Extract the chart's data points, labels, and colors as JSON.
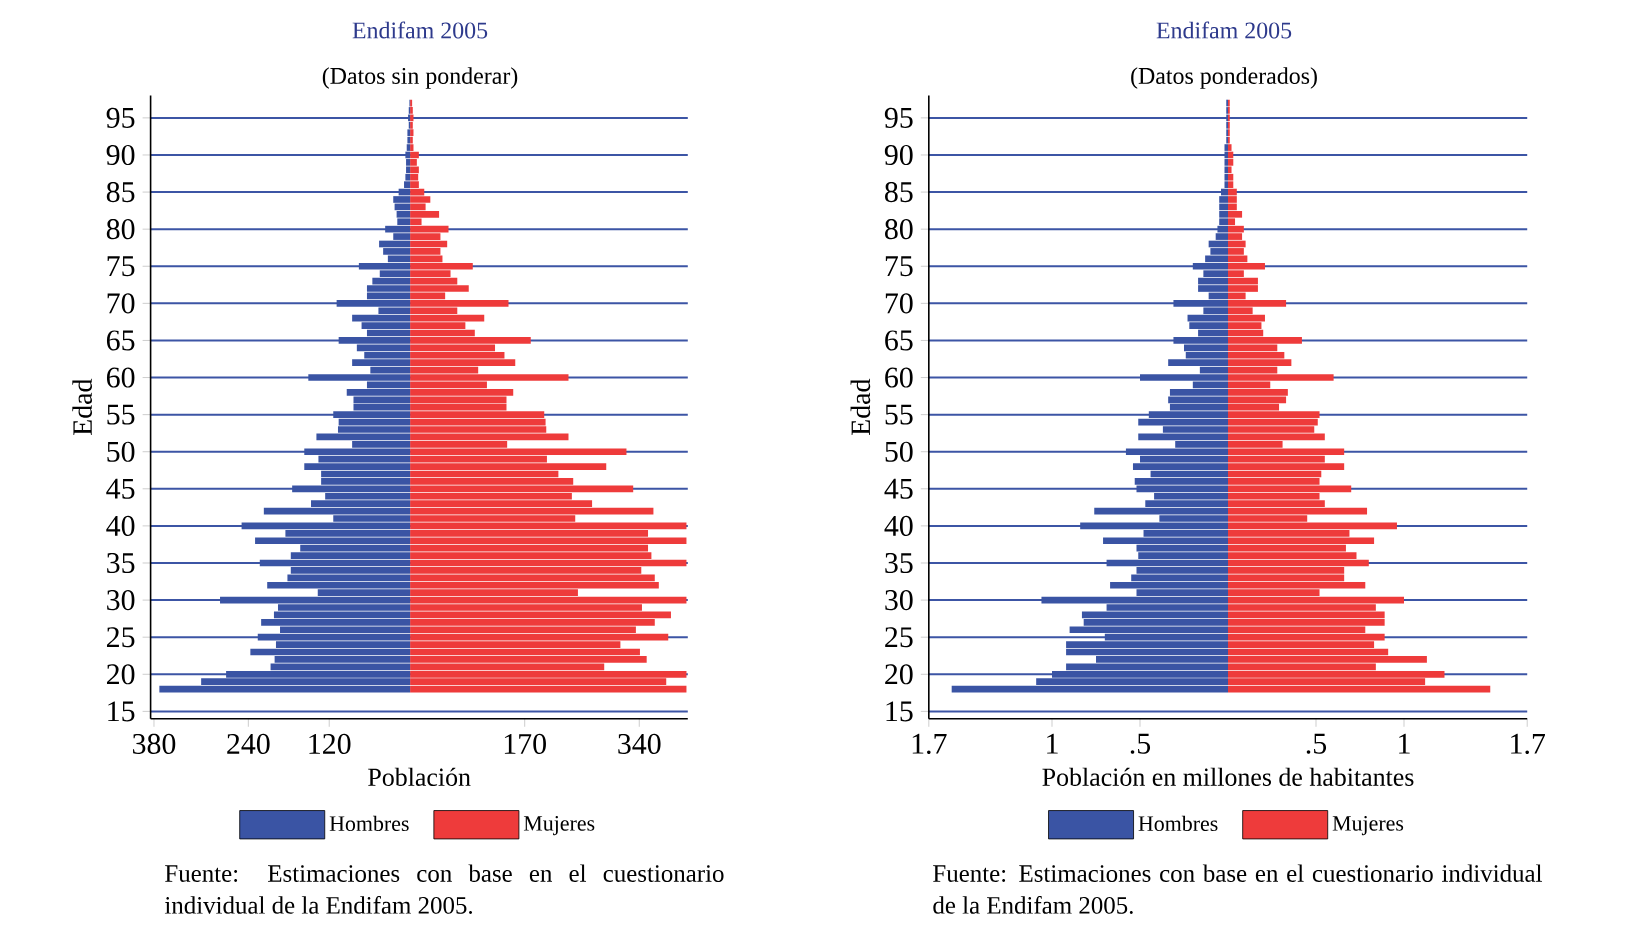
{
  "chart_data": [
    {
      "type": "bar",
      "orientation": "horizontal",
      "title": "Endifam 2005",
      "subtitle": "(Datos sin ponderar)",
      "xlabel": "Población",
      "ylabel": "Edad",
      "x": [
        18,
        19,
        20,
        21,
        22,
        23,
        24,
        25,
        26,
        27,
        28,
        29,
        30,
        31,
        32,
        33,
        34,
        35,
        36,
        37,
        38,
        39,
        40,
        41,
        42,
        43,
        44,
        45,
        46,
        47,
        48,
        49,
        50,
        51,
        52,
        53,
        54,
        55,
        56,
        57,
        58,
        59,
        60,
        61,
        62,
        63,
        64,
        65,
        66,
        67,
        68,
        69,
        70,
        71,
        72,
        73,
        74,
        75,
        76,
        77,
        78,
        79,
        80,
        81,
        82,
        83,
        84,
        85,
        86,
        87,
        88,
        89,
        90,
        91,
        92,
        93,
        94,
        95,
        96,
        97
      ],
      "series": [
        {
          "name": "Hombres",
          "color": "#3a54a4",
          "values": [
            -372,
            -310,
            -273,
            -207,
            -201,
            -237,
            -199,
            -226,
            -193,
            -221,
            -202,
            -196,
            -282,
            -137,
            -212,
            -182,
            -177,
            -223,
            -177,
            -163,
            -230,
            -185,
            -250,
            -114,
            -217,
            -147,
            -126,
            -175,
            -132,
            -132,
            -157,
            -136,
            -157,
            -86,
            -139,
            -107,
            -106,
            -114,
            -84,
            -84,
            -94,
            -64,
            -151,
            -59,
            -86,
            -68,
            -79,
            -106,
            -64,
            -72,
            -86,
            -47,
            -109,
            -64,
            -64,
            -56,
            -45,
            -76,
            -33,
            -40,
            -46,
            -25,
            -37,
            -19,
            -20,
            -23,
            -25,
            -17,
            -9,
            -7,
            -6,
            -6,
            -7,
            -5,
            -4,
            -4,
            -2,
            -3,
            -2,
            -1
          ]
        },
        {
          "name": "Mujeres",
          "color": "#ee3b3b",
          "values": [
            410,
            380,
            410,
            288,
            351,
            341,
            312,
            383,
            335,
            363,
            387,
            344,
            410,
            249,
            369,
            363,
            343,
            410,
            358,
            353,
            410,
            353,
            410,
            245,
            361,
            270,
            240,
            331,
            242,
            220,
            291,
            203,
            321,
            144,
            235,
            202,
            201,
            199,
            143,
            143,
            153,
            114,
            235,
            101,
            156,
            140,
            126,
            179,
            96,
            82,
            110,
            70,
            146,
            52,
            87,
            70,
            60,
            93,
            48,
            45,
            55,
            45,
            57,
            17,
            43,
            23,
            30,
            21,
            13,
            12,
            13,
            10,
            13,
            5,
            4,
            5,
            4,
            5,
            4,
            3
          ]
        }
      ],
      "xlim": [
        -385,
        412
      ],
      "xticks": [
        {
          "value": -380,
          "label": "380"
        },
        {
          "value": -240,
          "label": "240"
        },
        {
          "value": -120,
          "label": "120"
        },
        170,
        340
      ],
      "ylim": [
        14,
        98
      ],
      "yticks": [
        15,
        20,
        25,
        30,
        35,
        40,
        45,
        50,
        55,
        60,
        65,
        70,
        75,
        80,
        85,
        90,
        95
      ],
      "grid": "y",
      "legend": "bottom",
      "stacked": true,
      "annotations": [
        "Fuente: Estimaciones con base en el cuestionario individual de la Endifam 2005."
      ]
    },
    {
      "type": "bar",
      "orientation": "horizontal",
      "title": "Endifam 2005",
      "subtitle": "(Datos ponderados)",
      "xlabel": "Población en millones de habitantes",
      "ylabel": "Edad",
      "x": [
        18,
        19,
        20,
        21,
        22,
        23,
        24,
        25,
        26,
        27,
        28,
        29,
        30,
        31,
        32,
        33,
        34,
        35,
        36,
        37,
        38,
        39,
        40,
        41,
        42,
        43,
        44,
        45,
        46,
        47,
        48,
        49,
        50,
        51,
        52,
        53,
        54,
        55,
        56,
        57,
        58,
        59,
        60,
        61,
        62,
        63,
        64,
        65,
        66,
        67,
        68,
        69,
        70,
        71,
        72,
        73,
        74,
        75,
        76,
        77,
        78,
        79,
        80,
        81,
        82,
        83,
        84,
        85,
        86,
        87,
        88,
        89,
        90,
        91,
        92,
        93,
        94,
        95,
        96,
        97
      ],
      "series": [
        {
          "name": "Hombres",
          "color": "#3a54a4",
          "values": [
            -1.57,
            -1.09,
            -1.0,
            -0.92,
            -0.75,
            -0.92,
            -0.92,
            -0.7,
            -0.9,
            -0.82,
            -0.83,
            -0.69,
            -1.06,
            -0.52,
            -0.67,
            -0.55,
            -0.52,
            -0.69,
            -0.51,
            -0.52,
            -0.71,
            -0.48,
            -0.84,
            -0.39,
            -0.76,
            -0.47,
            -0.42,
            -0.52,
            -0.53,
            -0.44,
            -0.54,
            -0.5,
            -0.58,
            -0.3,
            -0.51,
            -0.37,
            -0.51,
            -0.45,
            -0.33,
            -0.34,
            -0.33,
            -0.2,
            -0.5,
            -0.16,
            -0.34,
            -0.24,
            -0.25,
            -0.31,
            -0.17,
            -0.22,
            -0.23,
            -0.14,
            -0.31,
            -0.11,
            -0.17,
            -0.17,
            -0.14,
            -0.2,
            -0.13,
            -0.1,
            -0.11,
            -0.07,
            -0.06,
            -0.05,
            -0.05,
            -0.05,
            -0.05,
            -0.04,
            -0.02,
            -0.02,
            -0.02,
            -0.02,
            -0.02,
            -0.02,
            -0.01,
            -0.01,
            -0.01,
            -0.01,
            -0.01,
            -0.01
          ]
        },
        {
          "name": "Mujeres",
          "color": "#ee3b3b",
          "values": [
            1.49,
            1.12,
            1.23,
            0.84,
            1.13,
            0.91,
            0.83,
            0.89,
            0.78,
            0.89,
            0.89,
            0.84,
            1.0,
            0.52,
            0.78,
            0.66,
            0.66,
            0.8,
            0.73,
            0.67,
            0.83,
            0.69,
            0.96,
            0.45,
            0.79,
            0.55,
            0.52,
            0.7,
            0.52,
            0.53,
            0.66,
            0.55,
            0.66,
            0.31,
            0.55,
            0.49,
            0.51,
            0.52,
            0.29,
            0.33,
            0.34,
            0.24,
            0.6,
            0.28,
            0.36,
            0.32,
            0.28,
            0.42,
            0.2,
            0.19,
            0.21,
            0.14,
            0.33,
            0.1,
            0.17,
            0.17,
            0.09,
            0.21,
            0.11,
            0.09,
            0.1,
            0.08,
            0.09,
            0.04,
            0.08,
            0.05,
            0.05,
            0.05,
            0.03,
            0.03,
            0.02,
            0.03,
            0.03,
            0.02,
            0.01,
            0.01,
            0.01,
            0.01,
            0.01,
            0.01
          ]
        }
      ],
      "xlim": [
        -1.7,
        1.7
      ],
      "xticks": [
        {
          "value": -1.7,
          "label": "1.7"
        },
        {
          "value": -1,
          "label": "1"
        },
        {
          "value": -0.5,
          "label": ".5"
        },
        {
          "value": 0.5,
          "label": ".5"
        },
        1,
        1.7
      ],
      "ylim": [
        14,
        98
      ],
      "yticks": [
        15,
        20,
        25,
        30,
        35,
        40,
        45,
        50,
        55,
        60,
        65,
        70,
        75,
        80,
        85,
        90,
        95
      ],
      "grid": "y",
      "legend": "bottom",
      "stacked": true,
      "annotations": [
        "Fuente: Estimaciones con base en el cuestionario individual de la Endifam 2005."
      ]
    }
  ]
}
